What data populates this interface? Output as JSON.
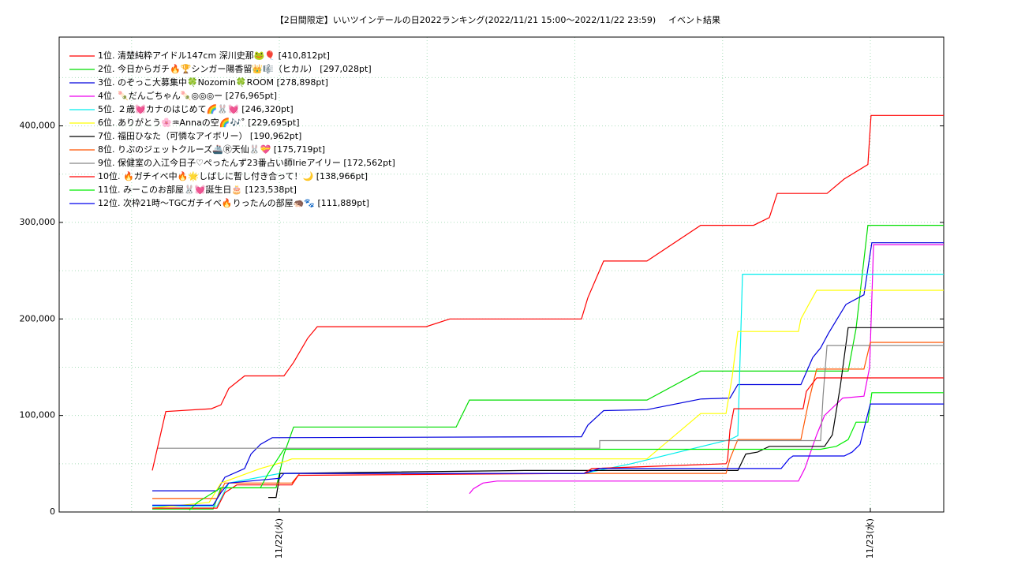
{
  "chart_data": {
    "type": "line",
    "title": "【2日間限定】いいツインテールの日2022ランキング(2022/11/21 15:00〜2022/11/22 23:59)",
    "subtitle": "イベント結果",
    "xlim": [
      -8.94,
      26.98
    ],
    "xticks": [
      {
        "value": 0,
        "label": "11/22(火)"
      },
      {
        "value": 24,
        "label": "11/23(水)"
      }
    ],
    "xminor": [
      -6,
      6,
      12,
      18
    ],
    "ylim": [
      0,
      492000
    ],
    "yticks": [
      0,
      {
        "value": 100000,
        "label": "100,000"
      },
      {
        "value": 200000,
        "label": "200,000"
      },
      {
        "value": 300000,
        "label": "300,000"
      },
      {
        "value": 400000,
        "label": "400,000"
      }
    ],
    "yminor": [
      50000,
      150000,
      250000,
      350000,
      450000
    ],
    "grid": true,
    "legend": "upper left",
    "series": [
      {
        "name": "1位. 清楚純粋アイドル147cm 深川史那🐸🎈 [410,812pt]",
        "color": "#ff0000",
        "x": [
          -5.16,
          -4.61,
          -2.76,
          -2.37,
          -2.05,
          -1.41,
          0.19,
          0.58,
          1.15,
          1.54,
          5.96,
          6.92,
          12.27,
          12.53,
          13.17,
          14.93,
          17.11,
          19.26,
          19.9,
          20.22,
          22.24,
          22.94,
          23.9,
          24.03,
          26.98
        ],
        "values": [
          43000,
          104000,
          107000,
          111000,
          128000,
          141000,
          141000,
          155000,
          180000,
          192000,
          192000,
          200000,
          200000,
          222000,
          260000,
          260000,
          297000,
          297000,
          305000,
          330000,
          330000,
          345000,
          360000,
          410812,
          410812
        ]
      },
      {
        "name": "2位. 今日からガチ🔥🏆シンガー陽香留👑🎼（ヒカル） [297,028pt]",
        "color": "#00dd00",
        "x": [
          -5.16,
          -2.69,
          -2.37,
          -0.13,
          0.19,
          0.58,
          7.18,
          7.72,
          14.93,
          17.11,
          23.1,
          23.42,
          23.9,
          26.98
        ],
        "values": [
          3000,
          3000,
          25000,
          25000,
          60000,
          88000,
          88000,
          116000,
          116000,
          146000,
          146000,
          190000,
          297028,
          297028
        ]
      },
      {
        "name": "3位. のぞっこ大募集中🍀Nozomin🍀ROOM [278,898pt]",
        "color": "#0000dd",
        "x": [
          -5.16,
          -2.53,
          -2.21,
          -1.41,
          -1.15,
          -0.77,
          -0.29,
          12.27,
          12.53,
          13.17,
          14.93,
          17.11,
          18.3,
          18.62,
          21.18,
          21.66,
          21.98,
          22.3,
          23.01,
          23.74,
          24.06,
          26.98
        ],
        "values": [
          22000,
          22000,
          36000,
          45000,
          60000,
          70000,
          77000,
          78000,
          90000,
          105000,
          106000,
          117000,
          118000,
          132000,
          132000,
          160000,
          170000,
          185000,
          215000,
          225000,
          278898,
          278898
        ]
      },
      {
        "name": "4位. 🍡だんごちゃん🍡◎◎◎ー [276,965pt]",
        "color": "#ee00ee",
        "x": [
          7.72,
          7.88,
          8.27,
          8.84,
          21.08,
          21.34,
          21.82,
          22.14,
          22.88,
          23.74,
          23.97,
          24.13,
          26.98
        ],
        "values": [
          19000,
          24000,
          30000,
          32000,
          32000,
          45000,
          80000,
          100000,
          118000,
          120000,
          150000,
          276965,
          276965
        ]
      },
      {
        "name": "5位. ２歳💓カナのはじめて🌈🐰💓 [246,320pt]",
        "color": "#00eeee",
        "x": [
          -5.16,
          -2.53,
          -2.05,
          0.03,
          12.37,
          14.29,
          18.3,
          18.62,
          18.81,
          26.98
        ],
        "values": [
          6000,
          6000,
          30000,
          40000,
          40000,
          50000,
          75000,
          79000,
          246320,
          246320
        ]
      },
      {
        "name": "6位. ありがとう🌸♒Annaの空🌈🎶˚ [229,695pt]",
        "color": "#ffff00",
        "x": [
          -5.16,
          -2.85,
          -2.37,
          -0.77,
          0.19,
          0.51,
          14.93,
          17.11,
          18.14,
          18.39,
          18.62,
          21.08,
          21.18,
          21.5,
          21.82,
          26.98
        ],
        "values": [
          4000,
          10000,
          30000,
          45000,
          52000,
          55000,
          55000,
          102000,
          102000,
          140000,
          187000,
          187000,
          200000,
          215000,
          229695,
          229695
        ]
      },
      {
        "name": "7位. 福田ひなた（可憐なアイボリー） [190,962pt]",
        "color": "#000000",
        "x": [
          -0.45,
          -0.13,
          0.03,
          9.96,
          18.62,
          18.94,
          19.42,
          19.9,
          22.14,
          22.46,
          22.78,
          23.1,
          26.98
        ],
        "values": [
          15000,
          15000,
          40000,
          43000,
          43000,
          60000,
          62000,
          68000,
          68000,
          80000,
          130000,
          190962,
          190962
        ]
      },
      {
        "name": "8位. りぷのジェットクルーズ🚢Ⓡ天仙🐰💝 [175,719pt]",
        "color": "#ff5500",
        "x": [
          -5.16,
          -2.53,
          -2.21,
          0.51,
          0.83,
          18.14,
          18.3,
          18.62,
          21.18,
          21.5,
          21.82,
          23.74,
          24.0,
          26.98
        ],
        "values": [
          14000,
          14000,
          30000,
          30000,
          40000,
          40000,
          55000,
          75000,
          75000,
          115000,
          148000,
          148000,
          175719,
          175719
        ]
      },
      {
        "name": "9位. 保健室の入江今日子♡ぺったんず23番占い師Irieアイリー [172,562pt]",
        "color": "#888888",
        "x": [
          -4.93,
          13.01,
          13.01,
          21.98,
          22.08,
          22.24,
          26.98
        ],
        "values": [
          66000,
          66000,
          74000,
          74000,
          120000,
          172562,
          172562
        ]
      },
      {
        "name": "10位. 🔥ガチイベ中🔥🌟しばしに暫し付き合って！🌙 [138,966pt]",
        "color": "#ff0000",
        "x": [
          -5.16,
          -2.53,
          -2.21,
          -1.73,
          0.51,
          0.77,
          12.37,
          12.69,
          18.14,
          18.2,
          18.3,
          18.46,
          21.27,
          21.4,
          21.82,
          26.98
        ],
        "values": [
          4000,
          4000,
          20000,
          28000,
          28000,
          38000,
          40000,
          45000,
          50000,
          53000,
          85000,
          107000,
          107000,
          125000,
          138966,
          138966
        ]
      },
      {
        "name": "11位. みーこのお部屋🐰💓誕生日🎂 [123,538pt]",
        "color": "#00ee00",
        "x": [
          -3.65,
          -3.33,
          -2.37,
          -0.77,
          -0.45,
          0.19,
          21.98,
          22.62,
          23.1,
          23.42,
          23.9,
          24.06,
          26.98
        ],
        "values": [
          2000,
          10000,
          25000,
          25000,
          40000,
          65000,
          65000,
          68000,
          75000,
          93000,
          93000,
          123538,
          123538
        ]
      },
      {
        "name": "12位. 次枠21時〜TGCガチイベ🔥りったんの部屋🦔🐾 [111,889pt]",
        "color": "#0000ee",
        "x": [
          -5.16,
          -2.69,
          -2.37,
          -2.05,
          0.03,
          0.19,
          12.37,
          13.01,
          20.38,
          20.7,
          20.86,
          22.94,
          23.26,
          23.58,
          24.0,
          26.98
        ],
        "values": [
          7000,
          7000,
          20000,
          30000,
          35000,
          40000,
          40000,
          45000,
          45000,
          55000,
          58000,
          58000,
          62000,
          70000,
          111889,
          111889
        ]
      }
    ]
  }
}
